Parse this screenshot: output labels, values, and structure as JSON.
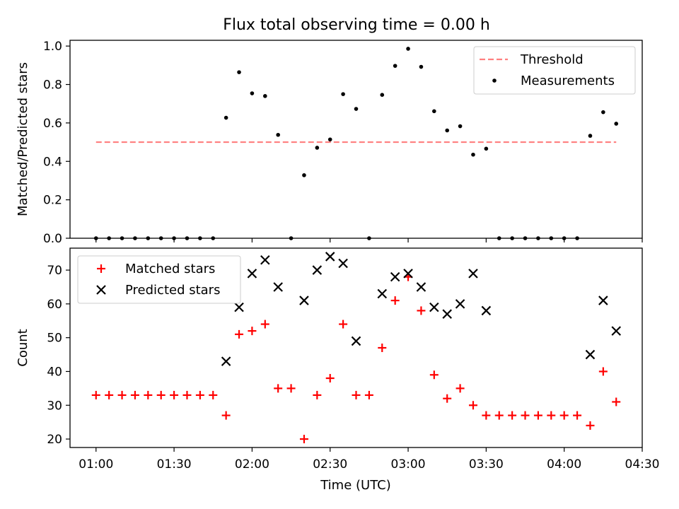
{
  "figure": {
    "title": "Flux total observing time = 0.00 h",
    "xlabel": "Time (UTC)"
  },
  "colors": {
    "threshold": "#ff7f7f",
    "measurements": "#000000",
    "matched": "#ff0000",
    "predicted": "#000000"
  },
  "chart_data": [
    {
      "type": "scatter",
      "panel": "top",
      "xlabel": "",
      "ylabel": "Matched/Predicted stars",
      "xlim": [
        "00:50",
        "04:30"
      ],
      "ylim": [
        0,
        1.03
      ],
      "x_ticks": [
        "01:00",
        "01:30",
        "02:00",
        "02:30",
        "03:00",
        "03:30",
        "04:00",
        "04:30"
      ],
      "y_ticks": [
        "0.0",
        "0.2",
        "0.4",
        "0.6",
        "0.8",
        "1.0"
      ],
      "legend_position": "top-right",
      "grid": false,
      "series": [
        {
          "name": "Threshold",
          "style": "dashed-line",
          "x": [
            "01:00",
            "04:20"
          ],
          "y": [
            0.5,
            0.5
          ]
        },
        {
          "name": "Measurements",
          "style": "dot",
          "x": [
            "01:00",
            "01:05",
            "01:10",
            "01:15",
            "01:20",
            "01:25",
            "01:30",
            "01:35",
            "01:40",
            "01:45",
            "01:50",
            "01:55",
            "02:00",
            "02:05",
            "02:10",
            "02:15",
            "02:20",
            "02:25",
            "02:30",
            "02:35",
            "02:40",
            "02:45",
            "02:50",
            "02:55",
            "03:00",
            "03:05",
            "03:10",
            "03:15",
            "03:20",
            "03:25",
            "03:30",
            "03:35",
            "03:40",
            "03:45",
            "03:50",
            "03:55",
            "04:00",
            "04:05",
            "04:10",
            "04:15",
            "04:20"
          ],
          "y": [
            0,
            0,
            0,
            0,
            0,
            0,
            0,
            0,
            0,
            0,
            0.627,
            0.864,
            0.754,
            0.74,
            0.538,
            0,
            0.328,
            0.471,
            0.514,
            0.75,
            0.673,
            0,
            0.746,
            0.897,
            0.986,
            0.892,
            0.661,
            0.561,
            0.583,
            0.435,
            0.466,
            0,
            0,
            0,
            0,
            0,
            0,
            0,
            0.533,
            0.656,
            0.596
          ]
        }
      ]
    },
    {
      "type": "scatter",
      "panel": "bottom",
      "xlabel": "Time (UTC)",
      "ylabel": "Count",
      "xlim": [
        "00:50",
        "04:30"
      ],
      "ylim": [
        17.5,
        76.5
      ],
      "x_ticks": [
        "01:00",
        "01:30",
        "02:00",
        "02:30",
        "03:00",
        "03:30",
        "04:00",
        "04:30"
      ],
      "y_ticks": [
        "20",
        "30",
        "40",
        "50",
        "60",
        "70"
      ],
      "legend_position": "top-left",
      "grid": false,
      "series": [
        {
          "name": "Matched stars",
          "marker": "+",
          "x": [
            "01:00",
            "01:05",
            "01:10",
            "01:15",
            "01:20",
            "01:25",
            "01:30",
            "01:35",
            "01:40",
            "01:45",
            "01:50",
            "01:55",
            "02:00",
            "02:05",
            "02:10",
            "02:15",
            "02:20",
            "02:25",
            "02:30",
            "02:35",
            "02:40",
            "02:45",
            "02:50",
            "02:55",
            "03:00",
            "03:05",
            "03:10",
            "03:15",
            "03:20",
            "03:25",
            "03:30",
            "03:35",
            "03:40",
            "03:45",
            "03:50",
            "03:55",
            "04:00",
            "04:05",
            "04:10",
            "04:15",
            "04:20"
          ],
          "y": [
            33,
            33,
            33,
            33,
            33,
            33,
            33,
            33,
            33,
            33,
            27,
            51,
            52,
            54,
            35,
            35,
            20,
            33,
            38,
            54,
            33,
            33,
            47,
            61,
            68,
            58,
            39,
            32,
            35,
            30,
            27,
            27,
            27,
            27,
            27,
            27,
            27,
            27,
            24,
            40,
            31
          ]
        },
        {
          "name": "Predicted stars",
          "marker": "x",
          "x": [
            "01:50",
            "01:55",
            "02:00",
            "02:05",
            "02:10",
            "02:20",
            "02:25",
            "02:30",
            "02:35",
            "02:40",
            "02:50",
            "02:55",
            "03:00",
            "03:05",
            "03:10",
            "03:15",
            "03:20",
            "03:25",
            "03:30",
            "04:10",
            "04:15",
            "04:20"
          ],
          "y": [
            43,
            59,
            69,
            73,
            65,
            61,
            70,
            74,
            72,
            49,
            63,
            68,
            69,
            65,
            59,
            57,
            60,
            69,
            58,
            45,
            61,
            52
          ]
        }
      ]
    }
  ]
}
